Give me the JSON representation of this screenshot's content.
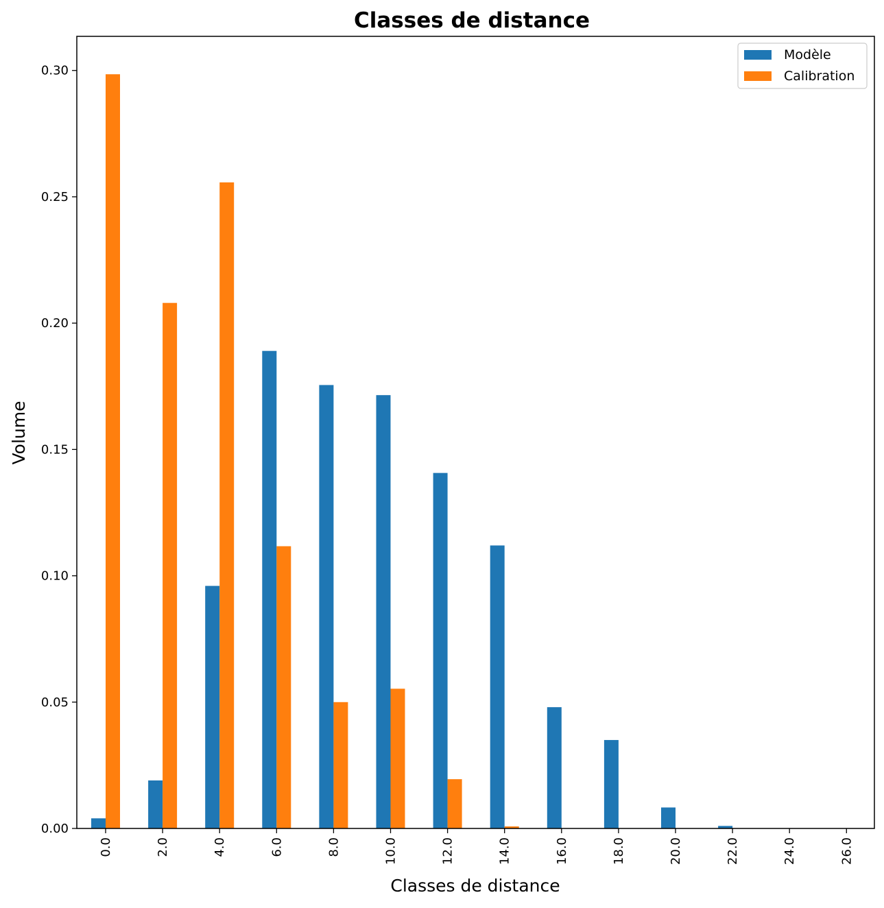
{
  "chart_data": {
    "type": "bar",
    "title": "Classes de distance",
    "xlabel": "Classes de distance",
    "ylabel": "Volume",
    "categories": [
      "0.0",
      "2.0",
      "4.0",
      "6.0",
      "8.0",
      "10.0",
      "12.0",
      "14.0",
      "16.0",
      "18.0",
      "20.0",
      "22.0",
      "24.0",
      "26.0"
    ],
    "series": [
      {
        "name": "Modèle",
        "color": "#1f77b4",
        "values": [
          0.004,
          0.019,
          0.096,
          0.189,
          0.1755,
          0.1715,
          0.1407,
          0.112,
          0.048,
          0.035,
          0.0083,
          0.001,
          0.0,
          0.0
        ]
      },
      {
        "name": "Calibration",
        "color": "#ff7f0e",
        "values": [
          0.2985,
          0.208,
          0.2557,
          0.1117,
          0.05,
          0.0553,
          0.0195,
          0.0008,
          0.0,
          0.0,
          0.0,
          0.0,
          0.0,
          0.0
        ]
      }
    ],
    "ylim": [
      0,
      0.3135
    ],
    "yticks": [
      {
        "value": 0.0,
        "label": "0.00"
      },
      {
        "value": 0.05,
        "label": "0.05"
      },
      {
        "value": 0.1,
        "label": "0.10"
      },
      {
        "value": 0.15,
        "label": "0.15"
      },
      {
        "value": 0.2,
        "label": "0.20"
      },
      {
        "value": 0.25,
        "label": "0.25"
      },
      {
        "value": 0.3,
        "label": "0.30"
      }
    ],
    "legend": {
      "position": "top-right"
    },
    "grid": false
  }
}
